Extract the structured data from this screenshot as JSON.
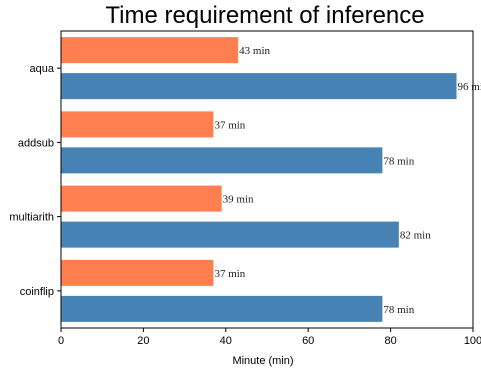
{
  "chart_data": {
    "type": "bar",
    "orientation": "horizontal",
    "title": "Time requirement of inference",
    "xlabel": "Minute (min)",
    "ylabel": "",
    "xlim": [
      0,
      100
    ],
    "xticks": [
      0,
      20,
      40,
      60,
      80,
      100
    ],
    "categories": [
      "aqua",
      "addsub",
      "multiarith",
      "coinflip"
    ],
    "series": [
      {
        "values": [
          43,
          37,
          39,
          37
        ],
        "color": "#FF7F50"
      },
      {
        "values": [
          96,
          78,
          82,
          78
        ],
        "color": "#4682B4"
      }
    ],
    "value_label_suffix": " min",
    "grid": false,
    "legend": "none"
  }
}
